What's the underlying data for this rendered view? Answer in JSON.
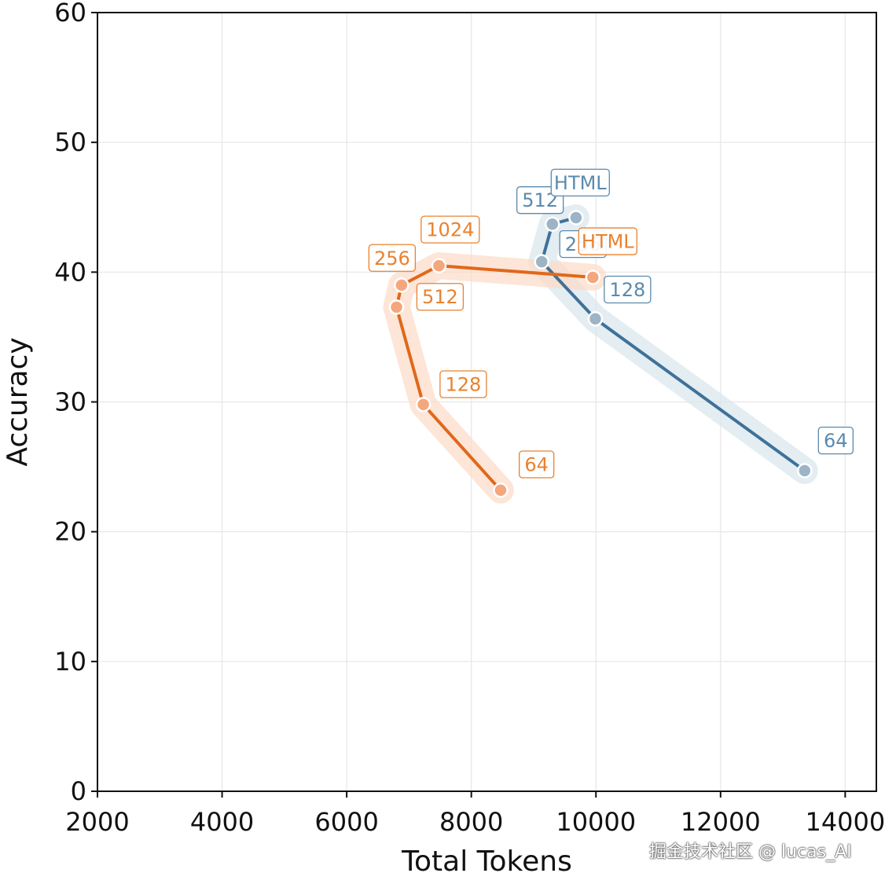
{
  "chart_data": {
    "type": "line",
    "title": "",
    "xlabel": "Total Tokens",
    "ylabel": "Accuracy",
    "xlim": [
      2000,
      14500
    ],
    "ylim": [
      0,
      60
    ],
    "xticks": [
      2000,
      4000,
      6000,
      8000,
      10000,
      12000,
      14000
    ],
    "yticks": [
      0,
      10,
      20,
      30,
      40,
      50,
      60
    ],
    "grid": true,
    "legend": "none",
    "series": [
      {
        "color": "#3f7199",
        "marker_color": "#9db3c6",
        "band_color": "#d7e6ec",
        "label_color": "#5a8aae",
        "points": [
          {
            "label": "64",
            "x": 13350,
            "y": 24.7
          },
          {
            "label": "128",
            "x": 9990,
            "y": 36.4
          },
          {
            "label": "256",
            "x": 9130,
            "y": 40.8
          },
          {
            "label": "512",
            "x": 9300,
            "y": 43.7
          },
          {
            "label": "HTML",
            "x": 9680,
            "y": 44.2
          }
        ]
      },
      {
        "color": "#e0681b",
        "marker_color": "#f4a77c",
        "band_color": "#fcdac6",
        "label_color": "#e8822f",
        "points": [
          {
            "label": "64",
            "x": 8470,
            "y": 23.2
          },
          {
            "label": "128",
            "x": 7230,
            "y": 29.8
          },
          {
            "label": "512",
            "x": 6800,
            "y": 37.3
          },
          {
            "label": "256",
            "x": 6880,
            "y": 39.0
          },
          {
            "label": "1024",
            "x": 7480,
            "y": 40.5
          },
          {
            "label": "HTML",
            "x": 9950,
            "y": 39.6
          }
        ]
      }
    ]
  },
  "watermark": "掘金技术社区 @ lucas_AI"
}
